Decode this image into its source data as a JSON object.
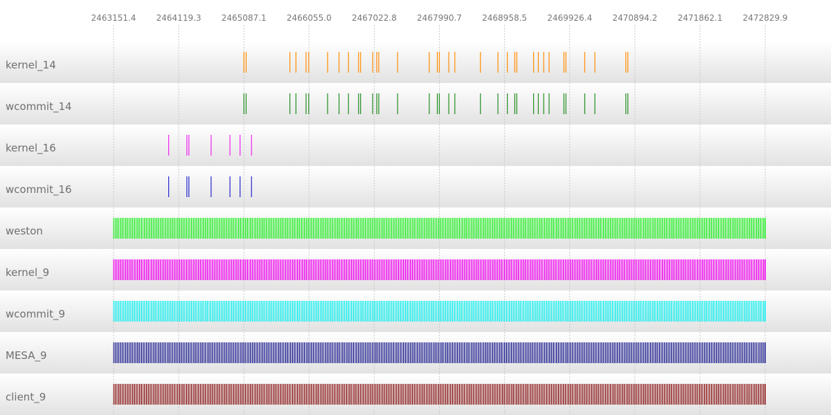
{
  "chart_data": {
    "type": "timeline",
    "x_ticks": [
      "2463151.4",
      "2464119.3",
      "2465087.1",
      "2466055.0",
      "2467022.8",
      "2467990.7",
      "2468958.5",
      "2469926.4",
      "2470894.2",
      "2471862.1",
      "2472829.9"
    ],
    "xlim": [
      2463151.4,
      2472829.9
    ],
    "grid": true,
    "series": [
      {
        "name": "kernel_14",
        "color": "#ff8c00",
        "mode": "sparse",
        "events": [
          2465087.1,
          2465120,
          2465770,
          2465860,
          2466010,
          2466050,
          2466330,
          2466500,
          2466640,
          2466790,
          2466820,
          2467000,
          2467060,
          2467090,
          2467370,
          2467840,
          2467960,
          2467990,
          2468130,
          2468220,
          2468600,
          2468860,
          2469000,
          2469110,
          2469140,
          2469390,
          2469460,
          2469540,
          2469620,
          2469840,
          2469870,
          2470150,
          2470300,
          2470760,
          2470790
        ]
      },
      {
        "name": "wcommit_14",
        "color": "#1f8c1f",
        "mode": "sparse",
        "events": [
          2465087.1,
          2465120,
          2465770,
          2465860,
          2466010,
          2466050,
          2466330,
          2466500,
          2466640,
          2466790,
          2466820,
          2467000,
          2467060,
          2467090,
          2467370,
          2467840,
          2467960,
          2467990,
          2468130,
          2468220,
          2468600,
          2468860,
          2469000,
          2469110,
          2469140,
          2469390,
          2469460,
          2469540,
          2469620,
          2469840,
          2469870,
          2470150,
          2470300,
          2470760,
          2470790
        ]
      },
      {
        "name": "kernel_16",
        "color": "#ee22ee",
        "mode": "sparse",
        "events": [
          2463970,
          2464240,
          2464270,
          2464600,
          2464880,
          2465030,
          2465200
        ]
      },
      {
        "name": "wcommit_16",
        "color": "#2222cc",
        "mode": "sparse",
        "events": [
          2463970,
          2464240,
          2464270,
          2464600,
          2464880,
          2465030,
          2465200
        ]
      },
      {
        "name": "weston",
        "color": "#22ee22",
        "mode": "dense",
        "start": 2463151.4,
        "end": 2472829.9,
        "density": 3.4
      },
      {
        "name": "kernel_9",
        "color": "#ee00ee",
        "mode": "dense",
        "start": 2463151.4,
        "end": 2472829.9,
        "density": 3.4
      },
      {
        "name": "wcommit_9",
        "color": "#11eeee",
        "mode": "dense",
        "start": 2463151.4,
        "end": 2472829.9,
        "density": 3.4
      },
      {
        "name": "MESA_9",
        "color": "#202090",
        "mode": "dense",
        "start": 2463151.4,
        "end": 2472829.9,
        "density": 3.4
      },
      {
        "name": "client_9",
        "color": "#8b1a1a",
        "mode": "dense",
        "start": 2463151.4,
        "end": 2472829.9,
        "density": 3.4
      }
    ]
  }
}
